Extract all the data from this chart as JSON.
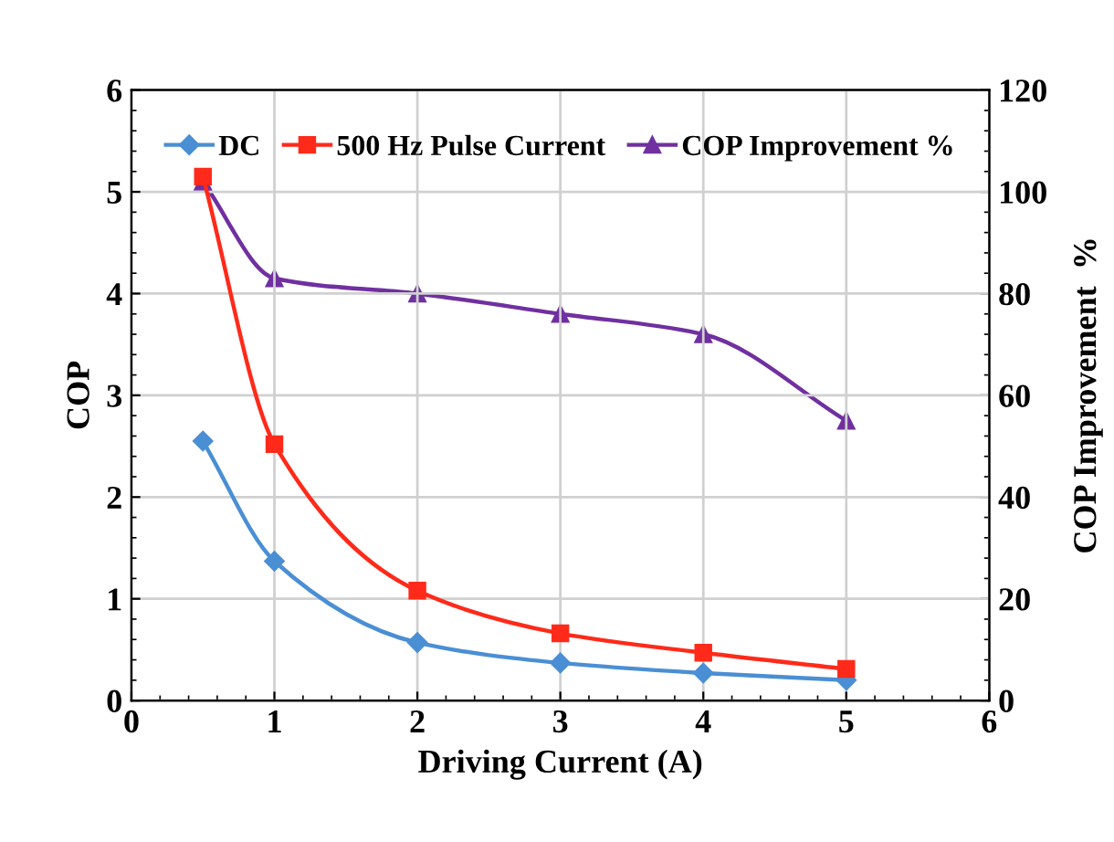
{
  "chart_data": {
    "type": "line",
    "xlabel": "Driving Current (A)",
    "ylabel": "COP",
    "y2label": "COP Improvement  %",
    "x": [
      0.5,
      1,
      2,
      3,
      4,
      5
    ],
    "series": [
      {
        "name": "DC",
        "color": "#4a8fd4",
        "values": [
          2.55,
          1.37,
          0.57,
          0.37,
          0.27,
          0.2
        ],
        "marker": "diamond"
      },
      {
        "name": "500 Hz Pulse Current",
        "color": "#ff2a1a",
        "values": [
          5.15,
          2.52,
          1.08,
          0.66,
          0.47,
          0.31
        ],
        "marker": "square"
      },
      {
        "name": "COP Improvement %",
        "color": "#7030a0",
        "values": [
          102,
          83,
          80,
          76,
          72,
          55
        ],
        "marker": "triangle",
        "axis": "y2"
      }
    ],
    "xlim": [
      0,
      6
    ],
    "xticks": [
      0,
      1,
      2,
      3,
      4,
      5,
      6
    ],
    "ylim": [
      0,
      6
    ],
    "yticks": [
      0,
      1,
      2,
      3,
      4,
      5,
      6
    ],
    "y2lim": [
      0,
      120
    ],
    "y2ticks": [
      0,
      20,
      40,
      60,
      80,
      100,
      120
    ],
    "grid": true,
    "legend": "top"
  }
}
